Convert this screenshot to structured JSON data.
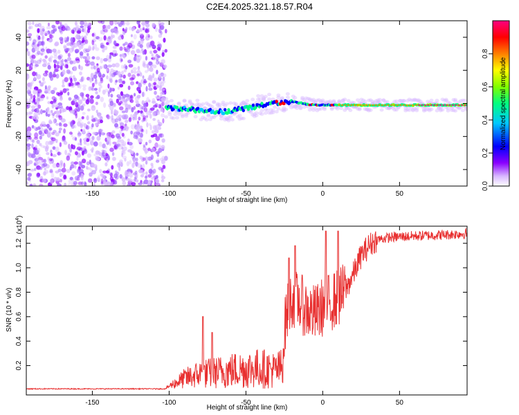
{
  "title": "C2E4.2025.321.18.57.R04",
  "chart_data": [
    {
      "type": "heatmap",
      "name": "spectrogram",
      "xlabel": "Height of straight line (km)",
      "ylabel": "Frequency (Hz)",
      "xlim": [
        -193,
        94
      ],
      "ylim": [
        -50,
        50
      ],
      "xticks": [
        -150,
        -100,
        -50,
        0,
        50
      ],
      "yticks": [
        -40,
        -20,
        0,
        20,
        40
      ],
      "noise_region_x": [
        -193,
        -102
      ],
      "signal": {
        "x_start": -102,
        "x_end": 94,
        "frequency_track": [
          {
            "x": -102,
            "freq": -3
          },
          {
            "x": -80,
            "freq": -4
          },
          {
            "x": -65,
            "freq": -5
          },
          {
            "x": -50,
            "freq": -3
          },
          {
            "x": -35,
            "freq": 0
          },
          {
            "x": -20,
            "freq": 1
          },
          {
            "x": -5,
            "freq": -1
          },
          {
            "x": 10,
            "freq": -1
          },
          {
            "x": 40,
            "freq": -1
          },
          {
            "x": 94,
            "freq": -1
          }
        ]
      },
      "colorbar": {
        "label": "Normalized spectral amplitude",
        "range": [
          0,
          1
        ],
        "ticks": [
          "0.0",
          "0.2",
          "0.4",
          "0.6",
          "0.8"
        ],
        "colors": [
          "#ffffff",
          "#d8b8ff",
          "#8a00ff",
          "#0000ff",
          "#00c8ff",
          "#00ff80",
          "#80ff00",
          "#ffff00",
          "#ff8000",
          "#ff0000",
          "#ff0080"
        ]
      }
    },
    {
      "type": "line",
      "name": "snr",
      "xlabel": "Height of straight line (km)",
      "ylabel": "SNR (10 * v/v)",
      "yscale_label": "(x10",
      "yscale_exponent": "4",
      "xlim": [
        -193,
        94
      ],
      "ylim": [
        -0.04,
        1.34
      ],
      "xticks": [
        -150,
        -100,
        -50,
        0,
        50
      ],
      "yticks": [
        "0.2",
        "0.4",
        "0.6",
        "0.8",
        "1.0",
        "1.2"
      ],
      "color": "#e83030",
      "envelope": [
        {
          "x": -193,
          "y": 0.01
        },
        {
          "x": -102,
          "y": 0.01
        },
        {
          "x": -98,
          "y": 0.06
        },
        {
          "x": -90,
          "y": 0.14
        },
        {
          "x": -80,
          "y": 0.2
        },
        {
          "x": -70,
          "y": 0.22
        },
        {
          "x": -60,
          "y": 0.25
        },
        {
          "x": -50,
          "y": 0.27
        },
        {
          "x": -40,
          "y": 0.28
        },
        {
          "x": -30,
          "y": 0.25
        },
        {
          "x": -26,
          "y": 0.3
        },
        {
          "x": -24,
          "y": 0.6
        },
        {
          "x": -20,
          "y": 0.75
        },
        {
          "x": -15,
          "y": 0.72
        },
        {
          "x": -10,
          "y": 0.65
        },
        {
          "x": -5,
          "y": 0.62
        },
        {
          "x": 0,
          "y": 0.68
        },
        {
          "x": 5,
          "y": 0.72
        },
        {
          "x": 10,
          "y": 0.75
        },
        {
          "x": 15,
          "y": 0.82
        },
        {
          "x": 20,
          "y": 0.95
        },
        {
          "x": 25,
          "y": 1.1
        },
        {
          "x": 30,
          "y": 1.18
        },
        {
          "x": 35,
          "y": 1.23
        },
        {
          "x": 45,
          "y": 1.25
        },
        {
          "x": 60,
          "y": 1.26
        },
        {
          "x": 80,
          "y": 1.27
        },
        {
          "x": 94,
          "y": 1.28
        }
      ],
      "spikes": [
        {
          "x": -78,
          "y": 0.6
        },
        {
          "x": -72,
          "y": 0.47
        },
        {
          "x": -22,
          "y": 1.08
        },
        {
          "x": -18,
          "y": 1.18
        },
        {
          "x": 2,
          "y": 1.3
        },
        {
          "x": 10,
          "y": 1.3
        }
      ]
    }
  ]
}
